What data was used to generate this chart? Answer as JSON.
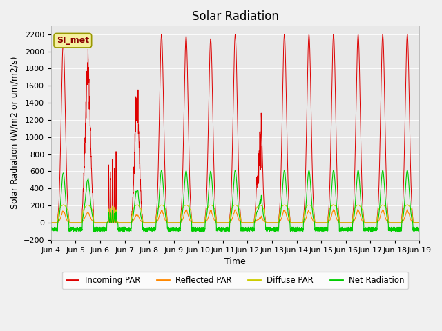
{
  "title": "Solar Radiation",
  "xlabel": "Time",
  "ylabel": "Solar Radiation (W/m2 or um/m2/s)",
  "ylim": [
    -200,
    2300
  ],
  "yticks": [
    -200,
    0,
    200,
    400,
    600,
    800,
    1000,
    1200,
    1400,
    1600,
    1800,
    2000,
    2200
  ],
  "annotation": "SI_met",
  "legend_entries": [
    "Incoming PAR",
    "Reflected PAR",
    "Diffuse PAR",
    "Net Radiation"
  ],
  "colors": [
    "#dd0000",
    "#ff8800",
    "#cccc00",
    "#00cc00"
  ],
  "fig_bg_color": "#f0f0f0",
  "plot_bg_color": "#e8e8e8",
  "title_fontsize": 12,
  "axis_fontsize": 9,
  "tick_fontsize": 8
}
